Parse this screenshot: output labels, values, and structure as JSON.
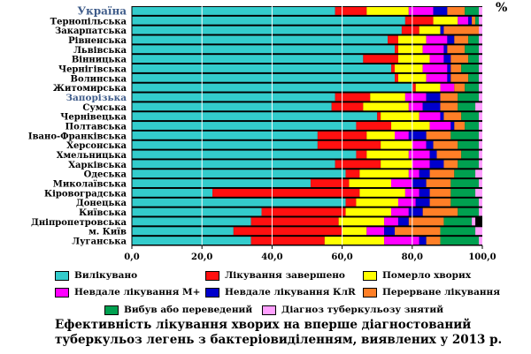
{
  "chart_data": {
    "type": "stacked-bar-horizontal",
    "title": "Ефективність лікування хворих на вперше діагностований туберкульоз легень з бактеріовиділенням, виявлених у 2013 р.",
    "xlabel": "%",
    "xlim": [
      0,
      100
    ],
    "x_ticks": [
      "0,0",
      "20,0",
      "40,0",
      "60,0",
      "80,0",
      "100,0"
    ],
    "grid": true,
    "categories": [
      "Україна",
      "Тернопільська",
      "Закарпатська",
      "Рівненська",
      "Львівська",
      "Вінницька",
      "Чернігівська",
      "Волинська",
      "Житомирська",
      "Запорізька",
      "Сумська",
      "Чернівецька",
      "Полтавська",
      "Івано-Франківська",
      "Херсонська",
      "Хмельницька",
      "Харківська",
      "Одеська",
      "Миколаївська",
      "Кіровоградська",
      "Донецька",
      "Київська",
      "Дніпропетровська",
      "м. Київ",
      "Луганська"
    ],
    "highlight_categories": [
      "Україна",
      "Запорізька"
    ],
    "series": [
      {
        "name": "Вилікувано",
        "color": "#33CCCC",
        "values": [
          58,
          78,
          77,
          73,
          75,
          66,
          74,
          75,
          80,
          58,
          57,
          70,
          64,
          53,
          53,
          64,
          58,
          61,
          51,
          23,
          61,
          37,
          34,
          29,
          34
        ]
      },
      {
        "name": "Лікування завершено",
        "color": "#FF1010",
        "values": [
          9,
          8,
          5,
          3,
          1,
          10,
          1,
          1,
          1,
          10,
          9,
          1,
          10,
          14,
          18,
          3,
          13,
          4,
          11,
          42,
          3,
          24,
          25,
          31,
          21
        ]
      },
      {
        "name": "Померло хворих",
        "color": "#FFFF00",
        "values": [
          12,
          7,
          6,
          8,
          7,
          9,
          8,
          8,
          7,
          10,
          13,
          11,
          11,
          8,
          9,
          12,
          9,
          14,
          12,
          13,
          12,
          13,
          13,
          7,
          17
        ]
      },
      {
        "name": "Невдале лікування М+",
        "color": "#FF00FF",
        "values": [
          7,
          3,
          0,
          6,
          6,
          4,
          7,
          6,
          4,
          6,
          4,
          6,
          6,
          4,
          4,
          6,
          5,
          3,
          6,
          4,
          5,
          5,
          4,
          5,
          10
        ]
      },
      {
        "name": "Невдале лікування КлR",
        "color": "#0000CC",
        "values": [
          4,
          1,
          1,
          2,
          1,
          2,
          1,
          1,
          0,
          4,
          5,
          1,
          1,
          5,
          2,
          2,
          4,
          3,
          4,
          3,
          4,
          4,
          3,
          3,
          2
        ]
      },
      {
        "name": "Перерване лікування",
        "color": "#FF7F27",
        "values": [
          5,
          1,
          10,
          4,
          5,
          5,
          3,
          5,
          3,
          5,
          5,
          5,
          3,
          7,
          7,
          7,
          4,
          7,
          7,
          6,
          6,
          10,
          10,
          13,
          4
        ]
      },
      {
        "name": "Вибув або переведений",
        "color": "#00A050",
        "values": [
          4,
          1,
          0,
          3,
          4,
          3,
          5,
          3,
          4,
          6,
          5,
          5,
          4,
          8,
          6,
          5,
          6,
          6,
          8,
          7,
          8,
          6,
          8,
          10,
          11
        ]
      },
      {
        "name": "Діагноз туберкульозу знятий",
        "color": "#FFA0FF",
        "values": [
          1,
          1,
          1,
          1,
          1,
          1,
          1,
          1,
          1,
          1,
          2,
          1,
          1,
          1,
          1,
          1,
          1,
          2,
          1,
          2,
          1,
          1,
          1,
          2,
          1
        ]
      }
    ]
  },
  "legend": [
    {
      "label": "Вилікувано",
      "color": "#33CCCC"
    },
    {
      "label": "Лікування завершено",
      "color": "#FF1010"
    },
    {
      "label": "Померло хворих",
      "color": "#FFFF00"
    },
    {
      "label": "Невдале лікування М+",
      "color": "#FF00FF"
    },
    {
      "label": "Невдале лікування КлR",
      "color": "#0000CC"
    },
    {
      "label": "Перерване лікування",
      "color": "#FF7F27"
    },
    {
      "label": "Вибув або переведений",
      "color": "#00A050"
    },
    {
      "label": "Діагноз туберкульозу знятий",
      "color": "#FFA0FF"
    }
  ],
  "caption": {
    "line1": "Ефективність лікування хворих на вперше діагностований",
    "line2": "туберкульоз легень з бактеріовиділенням, виявлених у 2013 р."
  },
  "colors": {
    "highlight_label": "#3F5C8A",
    "plot_background": "#000000",
    "gridline": "#ffffff"
  }
}
